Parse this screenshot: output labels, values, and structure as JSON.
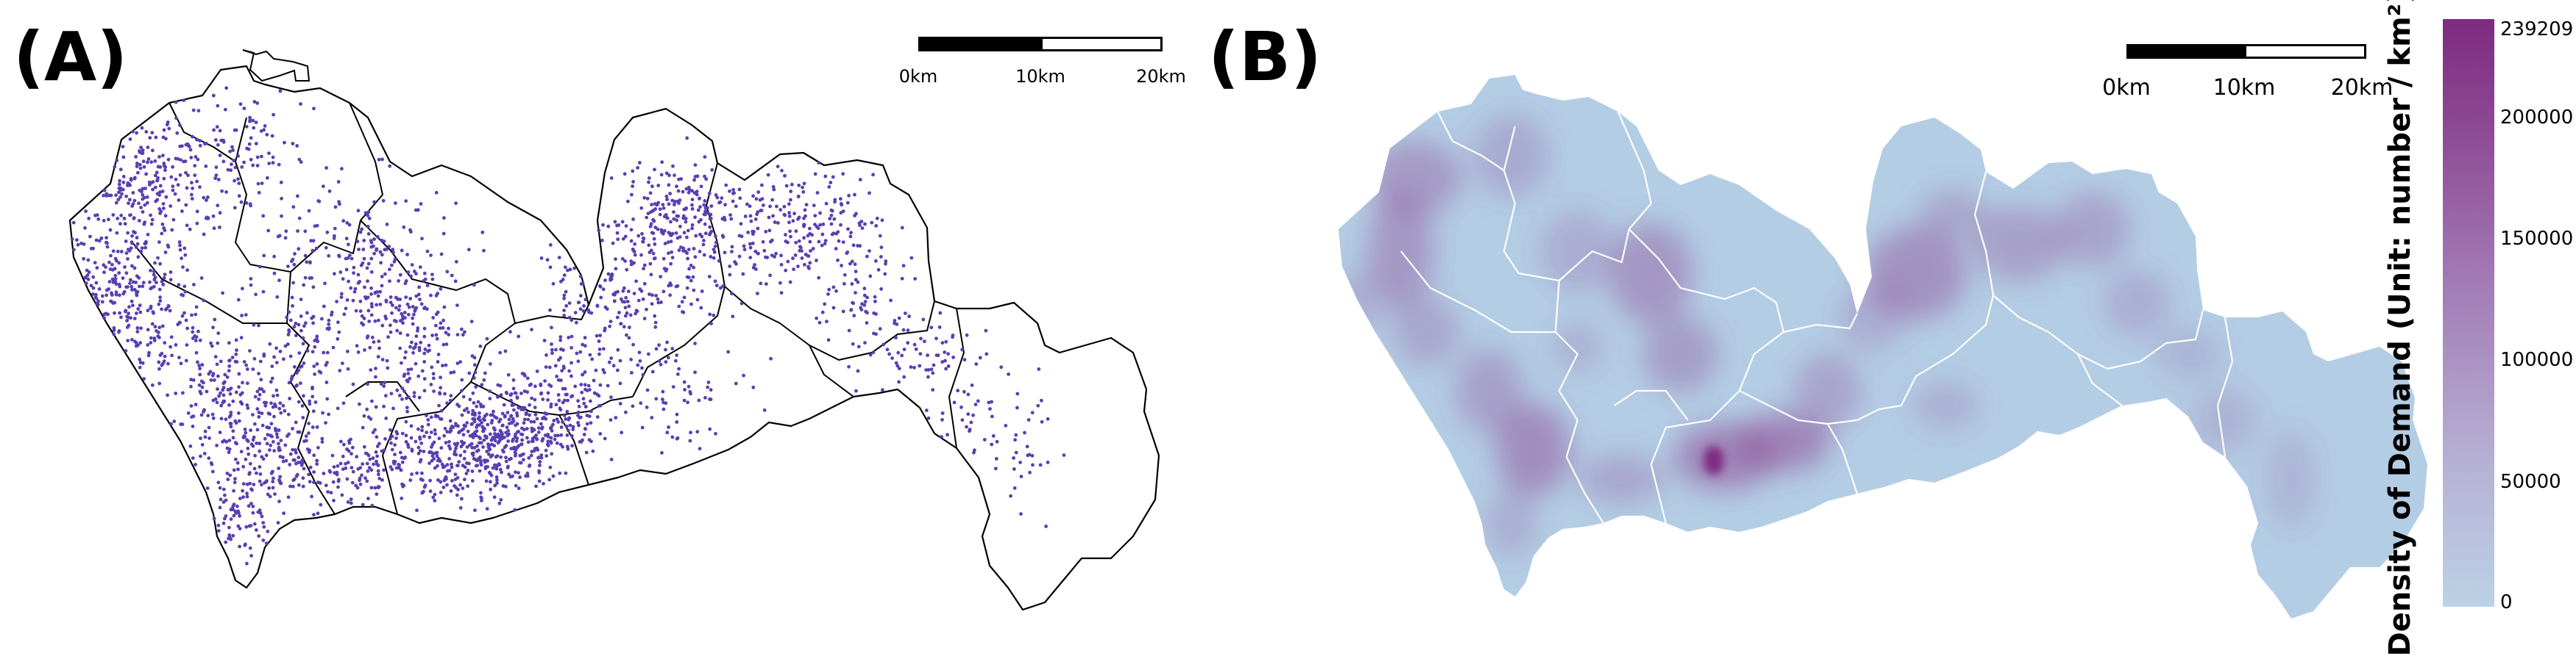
{
  "panel_a": {
    "label": "(A)",
    "scale_ticks": [
      "0km",
      "10km",
      "20km"
    ],
    "colors": {
      "boundary": "#000000",
      "points": "#5a3fb0",
      "background": "#ffffff"
    }
  },
  "panel_b": {
    "label": "(B)",
    "scale_ticks": [
      "0km",
      "10km",
      "20km"
    ],
    "colors": {
      "base": "#b3cde4",
      "boundary": "#ffffff",
      "high": "#7e2a80"
    }
  },
  "legend": {
    "title": "Density of Demand (Unit: number / km²)",
    "ticks": [
      "239209",
      "200000",
      "150000",
      "100000",
      "50000",
      "0"
    ],
    "range": [
      0,
      239209
    ]
  }
}
